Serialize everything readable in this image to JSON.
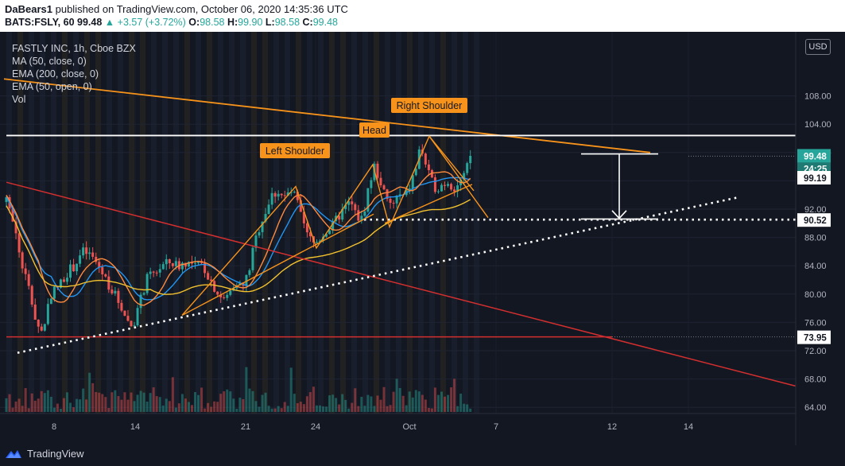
{
  "header": {
    "author": "DaBears1",
    "published_text": " published on TradingView.com, October 06, 2020 14:35:36 UTC",
    "symbol": "BATS:FSLY, 60",
    "last": "99.48",
    "change_arrow": "▲",
    "change": "+3.57 (+3.72%)",
    "o_label": "O:",
    "o_value": "98.58",
    "h_label": "H:",
    "h_value": "99.90",
    "l_label": "L:",
    "l_value": "98.58",
    "c_label": "C:",
    "c_value": "99.48"
  },
  "legend": {
    "title": "FASTLY INC, 1h, Cboe BZX",
    "items": [
      "MA (50, close, 0)",
      "EMA (200, close, 0)",
      "EMA (50, open, 0)",
      "Vol"
    ]
  },
  "currency_button": "USD",
  "footer": {
    "brand": "TradingView"
  },
  "colors": {
    "background": "#131722",
    "up": "#26a69a",
    "down": "#ef5350",
    "pattern": "#f7931a",
    "trendline_red": "#d32f2f",
    "ma50": "#2196f3",
    "ema200": "#f2c12e",
    "ema50": "#ff8a3d",
    "price_tag": "#26a69a"
  },
  "chart_data": {
    "type": "candlestick",
    "y_axis": {
      "min": 62,
      "max": 112,
      "ticks": [
        64,
        68,
        72,
        76,
        80,
        84,
        88,
        92,
        96,
        100,
        104,
        108
      ]
    },
    "y_tick_labels": [
      "64.00",
      "68.00",
      "72.00",
      "76.00",
      "80.00",
      "84.00",
      "88.00",
      "92.00",
      "96.00",
      "100.00",
      "104.00",
      "108.00"
    ],
    "x_axis": {
      "labels": [
        "8",
        "14",
        "21",
        "24",
        "Oct",
        "7",
        "12",
        "14"
      ]
    },
    "price_labels": {
      "last": "99.48",
      "countdown": "24:25",
      "ema_value": "99.19",
      "target": "90.52",
      "support": "73.95"
    },
    "annotations": [
      "Left Shoulder",
      "Head",
      "Right Shoulder"
    ],
    "levels": {
      "neckline_top": 102.4,
      "target": 90.52,
      "support": 73.95
    },
    "pattern_points": [
      {
        "label": "Left Shoulder",
        "price": 95.2
      },
      {
        "label": "Head",
        "price": 98.3
      },
      {
        "label": "Right Shoulder",
        "price": 102.3
      }
    ],
    "price_path": [
      [
        0,
        93
      ],
      [
        6,
        91
      ],
      [
        14,
        85
      ],
      [
        22,
        81
      ],
      [
        30,
        76
      ],
      [
        36,
        74.5
      ],
      [
        44,
        80
      ],
      [
        52,
        81
      ],
      [
        60,
        83
      ],
      [
        68,
        84
      ],
      [
        76,
        86
      ],
      [
        84,
        85.5
      ],
      [
        92,
        84
      ],
      [
        100,
        82
      ],
      [
        108,
        80
      ],
      [
        116,
        78
      ],
      [
        122,
        76
      ],
      [
        126,
        75.5
      ],
      [
        132,
        78
      ],
      [
        140,
        82
      ],
      [
        148,
        83
      ],
      [
        156,
        84
      ],
      [
        164,
        84.5
      ],
      [
        172,
        84
      ],
      [
        180,
        84.6
      ],
      [
        188,
        83.8
      ],
      [
        196,
        84.2
      ],
      [
        204,
        82
      ],
      [
        212,
        80
      ],
      [
        218,
        79
      ],
      [
        224,
        80.5
      ],
      [
        230,
        82
      ],
      [
        236,
        80.8
      ],
      [
        242,
        83
      ],
      [
        248,
        87
      ],
      [
        254,
        90
      ],
      [
        260,
        92
      ],
      [
        266,
        94
      ],
      [
        272,
        94.6
      ],
      [
        278,
        93.5
      ],
      [
        284,
        94.5
      ],
      [
        290,
        93.5
      ],
      [
        296,
        90
      ],
      [
        302,
        88
      ],
      [
        308,
        87
      ],
      [
        314,
        88
      ],
      [
        320,
        89
      ],
      [
        326,
        89.5
      ],
      [
        332,
        91
      ],
      [
        338,
        92
      ],
      [
        344,
        93
      ],
      [
        350,
        91
      ],
      [
        356,
        90.5
      ],
      [
        362,
        95
      ],
      [
        368,
        98
      ],
      [
        374,
        96
      ],
      [
        380,
        93
      ],
      [
        386,
        92.5
      ],
      [
        392,
        94
      ],
      [
        398,
        93.5
      ],
      [
        404,
        95.5
      ],
      [
        410,
        98
      ],
      [
        414,
        101
      ],
      [
        418,
        99
      ],
      [
        424,
        96
      ],
      [
        430,
        95
      ],
      [
        436,
        95.5
      ],
      [
        442,
        96
      ],
      [
        448,
        95
      ],
      [
        452,
        95.5
      ],
      [
        458,
        96.5
      ],
      [
        464,
        99.5
      ]
    ]
  }
}
